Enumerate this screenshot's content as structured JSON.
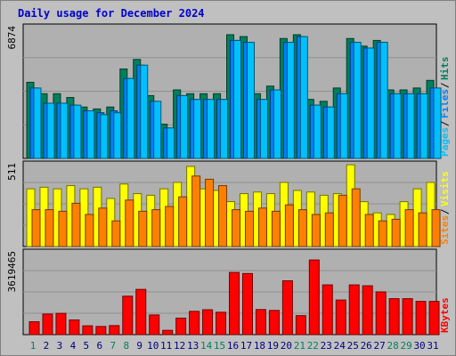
{
  "title": "Daily usage for December 2024",
  "colors": {
    "background": "#c0c0c0",
    "plot_bg": "#b0b0b0",
    "hits": "#00805c",
    "files": "#0080ff",
    "pages": "#00c0ff",
    "visits": "#ffff00",
    "sites": "#ff8000",
    "kbytes": "#ff0000",
    "weekend_label": "#00805c",
    "weekday_label": "#000080"
  },
  "chart_data": [
    {
      "type": "bar",
      "name": "hits-files-pages",
      "categories": [
        "1",
        "2",
        "3",
        "4",
        "5",
        "6",
        "7",
        "8",
        "9",
        "10",
        "11",
        "12",
        "13",
        "14",
        "15",
        "16",
        "17",
        "18",
        "19",
        "20",
        "21",
        "22",
        "23",
        "24",
        "25",
        "26",
        "27",
        "28",
        "29",
        "30",
        "31"
      ],
      "weekend_days": [
        "1",
        "7",
        "8",
        "14",
        "15",
        "21",
        "22",
        "28",
        "29"
      ],
      "ymax_label": "6874",
      "ylim": [
        0,
        6874
      ],
      "right_labels": [
        "Hits",
        "Files",
        "Pages"
      ],
      "series": [
        {
          "name": "Hits",
          "values": [
            4000,
            3400,
            3400,
            3200,
            2700,
            2600,
            2700,
            4700,
            5200,
            3300,
            1800,
            3600,
            3400,
            3400,
            3400,
            6500,
            6400,
            3400,
            3800,
            6300,
            6500,
            3100,
            3000,
            3700,
            6300,
            5900,
            6200,
            3600,
            3600,
            3700,
            4100
          ]
        },
        {
          "name": "Files",
          "values": [
            3700,
            2900,
            2900,
            2800,
            2500,
            2400,
            2500,
            4200,
            4900,
            3000,
            1600,
            3300,
            3100,
            3100,
            3100,
            6200,
            6100,
            3100,
            3600,
            6100,
            6400,
            2800,
            2700,
            3400,
            6100,
            5800,
            6100,
            3400,
            3400,
            3400,
            3700
          ]
        },
        {
          "name": "Pages",
          "values": [
            3700,
            2900,
            2900,
            2800,
            2500,
            2300,
            2400,
            4200,
            4900,
            3000,
            1600,
            3300,
            3100,
            3100,
            3100,
            6200,
            6100,
            3100,
            3600,
            6100,
            6400,
            2800,
            2700,
            3400,
            6100,
            5800,
            6100,
            3400,
            3400,
            3400,
            3700
          ]
        }
      ]
    },
    {
      "type": "bar",
      "name": "visits-sites",
      "categories": [
        "1",
        "2",
        "3",
        "4",
        "5",
        "6",
        "7",
        "8",
        "9",
        "10",
        "11",
        "12",
        "13",
        "14",
        "15",
        "16",
        "17",
        "18",
        "19",
        "20",
        "21",
        "22",
        "23",
        "24",
        "25",
        "26",
        "27",
        "28",
        "29",
        "30",
        "31"
      ],
      "ymax_label": "511",
      "ylim": [
        0,
        511
      ],
      "right_labels": [
        "Visits",
        "Sites"
      ],
      "series": [
        {
          "name": "Visits",
          "values": [
            360,
            370,
            360,
            380,
            360,
            370,
            300,
            390,
            330,
            320,
            360,
            400,
            500,
            360,
            350,
            280,
            330,
            340,
            330,
            400,
            350,
            340,
            320,
            330,
            510,
            280,
            210,
            200,
            280,
            360,
            400
          ]
        },
        {
          "name": "Sites",
          "values": [
            230,
            230,
            220,
            270,
            200,
            240,
            160,
            290,
            220,
            230,
            250,
            310,
            440,
            420,
            380,
            230,
            220,
            240,
            220,
            260,
            230,
            200,
            210,
            320,
            360,
            200,
            160,
            170,
            230,
            210,
            230
          ]
        }
      ]
    },
    {
      "type": "bar",
      "name": "kbytes",
      "categories": [
        "1",
        "2",
        "3",
        "4",
        "5",
        "6",
        "7",
        "8",
        "9",
        "10",
        "11",
        "12",
        "13",
        "14",
        "15",
        "16",
        "17",
        "18",
        "19",
        "20",
        "21",
        "22",
        "23",
        "24",
        "25",
        "26",
        "27",
        "28",
        "29",
        "30",
        "31"
      ],
      "ymax_label": "3619465",
      "ylim": [
        0,
        3619465
      ],
      "right_labels": [
        "KBytes"
      ],
      "series": [
        {
          "name": "KBytes",
          "values": [
            570000,
            910000,
            940000,
            650000,
            390000,
            360000,
            400000,
            1700000,
            2000000,
            870000,
            190000,
            730000,
            1030000,
            1100000,
            990000,
            2750000,
            2700000,
            1110000,
            1070000,
            2380000,
            840000,
            3300000,
            2200000,
            1530000,
            2200000,
            2160000,
            1890000,
            1590000,
            1590000,
            1470000,
            1470000
          ]
        }
      ]
    }
  ]
}
